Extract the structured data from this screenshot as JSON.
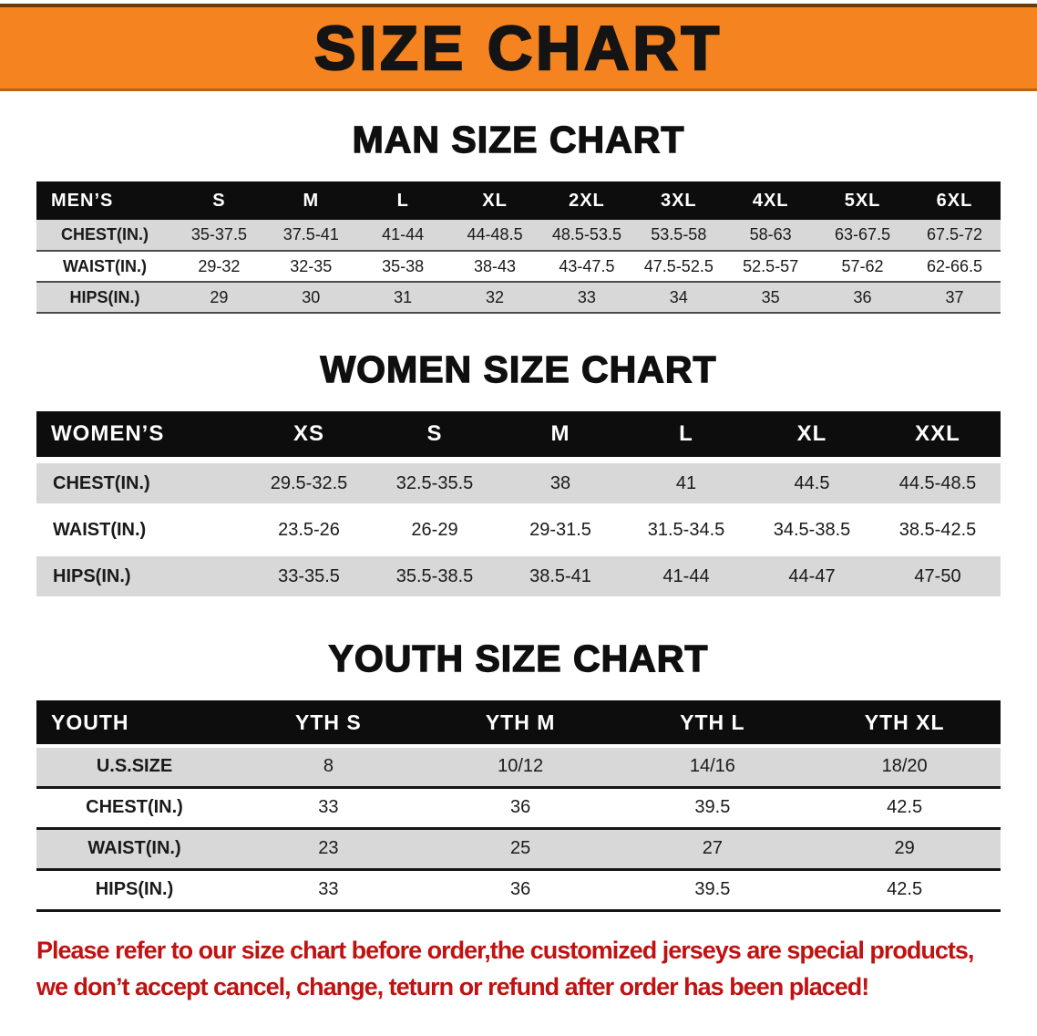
{
  "banner": {
    "title": "SIZE CHART"
  },
  "colors": {
    "banner_bg": "#F5831F",
    "header_bg": "#0d0d0d",
    "header_text": "#ffffff",
    "row_shade": "#d8d8d8",
    "row_plain": "#ffffff",
    "row_line": "#4d4d4d",
    "footer_text": "#c11212"
  },
  "chart_data": [
    {
      "type": "table",
      "id": "mens",
      "title": "MAN SIZE CHART",
      "corner_label": "MEN’S",
      "columns": [
        "S",
        "M",
        "L",
        "XL",
        "2XL",
        "3XL",
        "4XL",
        "5XL",
        "6XL"
      ],
      "rows": [
        {
          "label": "CHEST(IN.)",
          "values": [
            "35-37.5",
            "37.5-41",
            "41-44",
            "44-48.5",
            "48.5-53.5",
            "53.5-58",
            "58-63",
            "63-67.5",
            "67.5-72"
          ]
        },
        {
          "label": "WAIST(IN.)",
          "values": [
            "29-32",
            "32-35",
            "35-38",
            "38-43",
            "43-47.5",
            "47.5-52.5",
            "52.5-57",
            "57-62",
            "62-66.5"
          ]
        },
        {
          "label": "HIPS(IN.)",
          "values": [
            "29",
            "30",
            "31",
            "32",
            "33",
            "34",
            "35",
            "36",
            "37"
          ]
        }
      ]
    },
    {
      "type": "table",
      "id": "womens",
      "title": "WOMEN SIZE CHART",
      "corner_label": "WOMEN’S",
      "columns": [
        "XS",
        "S",
        "M",
        "L",
        "XL",
        "XXL"
      ],
      "rows": [
        {
          "label": "CHEST(IN.)",
          "values": [
            "29.5-32.5",
            "32.5-35.5",
            "38",
            "41",
            "44.5",
            "44.5-48.5"
          ]
        },
        {
          "label": "WAIST(IN.)",
          "values": [
            "23.5-26",
            "26-29",
            "29-31.5",
            "31.5-34.5",
            "34.5-38.5",
            "38.5-42.5"
          ]
        },
        {
          "label": "HIPS(IN.)",
          "values": [
            "33-35.5",
            "35.5-38.5",
            "38.5-41",
            "41-44",
            "44-47",
            "47-50"
          ]
        }
      ]
    },
    {
      "type": "table",
      "id": "youth",
      "title": "YOUTH SIZE CHART",
      "corner_label": "YOUTH",
      "columns": [
        "YTH S",
        "YTH M",
        "YTH L",
        "YTH XL"
      ],
      "rows": [
        {
          "label": "U.S.SIZE",
          "values": [
            "8",
            "10/12",
            "14/16",
            "18/20"
          ]
        },
        {
          "label": "CHEST(IN.)",
          "values": [
            "33",
            "36",
            "39.5",
            "42.5"
          ]
        },
        {
          "label": "WAIST(IN.)",
          "values": [
            "23",
            "25",
            "27",
            "29"
          ]
        },
        {
          "label": "HIPS(IN.)",
          "values": [
            "33",
            "36",
            "39.5",
            "42.5"
          ]
        }
      ]
    }
  ],
  "footer": {
    "line1": "Please refer to our size chart before order,the customized jerseys are special products,",
    "line2": "we don’t accept cancel, change, teturn or refund after order has been placed!"
  }
}
